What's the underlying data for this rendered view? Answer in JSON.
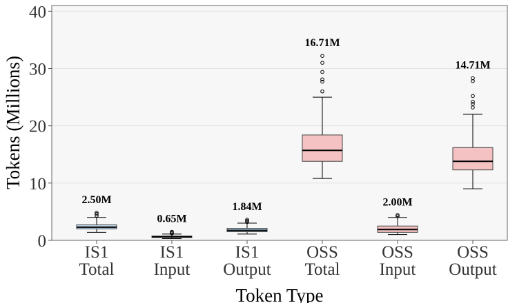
{
  "chart_data": {
    "type": "box",
    "xlabel": "Token Type",
    "ylabel": "Tokens (Millions)",
    "ylim": [
      0,
      41
    ],
    "yticks": [
      0,
      10,
      20,
      30,
      40
    ],
    "grid": true,
    "colors": {
      "IS1": "#bdd7ee",
      "OSS": "#f4c2c2"
    },
    "boxes": [
      {
        "label_line1": "IS1",
        "label_line2": "Total",
        "group": "IS1",
        "annotation": "2.50M",
        "whisker_low": 1.4,
        "q1": 2.0,
        "median": 2.3,
        "q3": 2.7,
        "whisker_high": 4.0,
        "outliers": [
          4.3,
          4.6,
          4.8
        ]
      },
      {
        "label_line1": "IS1",
        "label_line2": "Input",
        "group": "IS1",
        "annotation": "0.65M",
        "whisker_low": 0.3,
        "q1": 0.5,
        "median": 0.6,
        "q3": 0.75,
        "whisker_high": 1.1,
        "outliers": [
          1.2,
          1.35,
          1.5
        ]
      },
      {
        "label_line1": "IS1",
        "label_line2": "Output",
        "group": "IS1",
        "annotation": "1.84M",
        "whisker_low": 1.1,
        "q1": 1.5,
        "median": 1.75,
        "q3": 2.1,
        "whisker_high": 3.0,
        "outliers": [
          3.2,
          3.4,
          3.6
        ]
      },
      {
        "label_line1": "OSS",
        "label_line2": "Total",
        "group": "OSS",
        "annotation": "16.71M",
        "whisker_low": 10.8,
        "q1": 13.8,
        "median": 15.7,
        "q3": 18.4,
        "whisker_high": 25.0,
        "outliers": [
          26.0,
          27.7,
          28.1,
          29.4,
          31.0,
          32.2
        ]
      },
      {
        "label_line1": "OSS",
        "label_line2": "Input",
        "group": "OSS",
        "annotation": "2.00M",
        "whisker_low": 1.0,
        "q1": 1.4,
        "median": 1.9,
        "q3": 2.5,
        "whisker_high": 4.0,
        "outliers": [
          4.2,
          4.4
        ]
      },
      {
        "label_line1": "OSS",
        "label_line2": "Output",
        "group": "OSS",
        "annotation": "14.71M",
        "whisker_low": 9.0,
        "q1": 12.3,
        "median": 13.8,
        "q3": 16.2,
        "whisker_high": 22.0,
        "outliers": [
          23.2,
          23.8,
          24.2,
          25.2,
          27.8,
          28.3
        ]
      }
    ]
  }
}
